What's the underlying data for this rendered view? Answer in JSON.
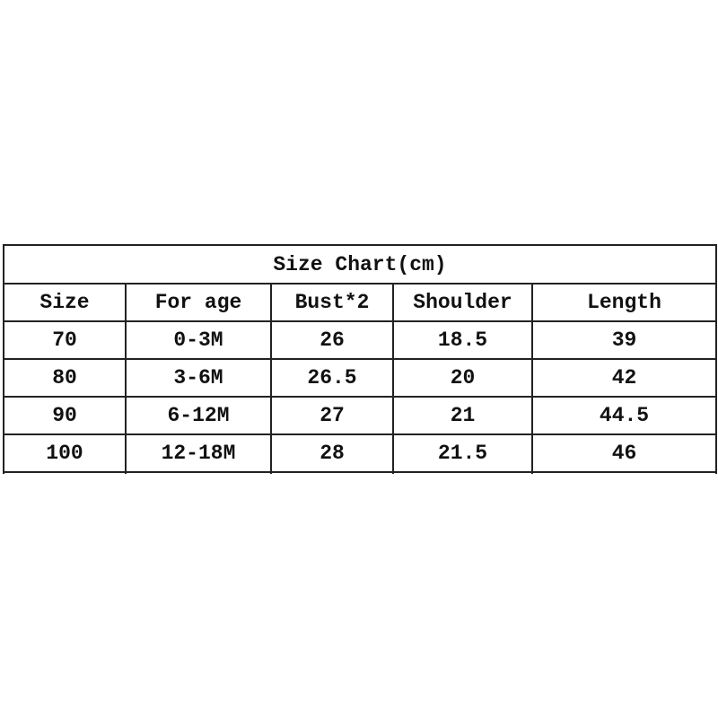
{
  "title": "Size Chart(cm)",
  "columns": [
    "Size",
    "For age",
    "Bust*2",
    "Shoulder",
    "Length"
  ],
  "rows": [
    [
      "70",
      "0-3M",
      "26",
      "18.5",
      "39"
    ],
    [
      "80",
      "3-6M",
      "26.5",
      "20",
      "42"
    ],
    [
      "90",
      "6-12M",
      "27",
      "21",
      "44.5"
    ],
    [
      "100",
      "12-18M",
      "28",
      "21.5",
      "46"
    ]
  ]
}
